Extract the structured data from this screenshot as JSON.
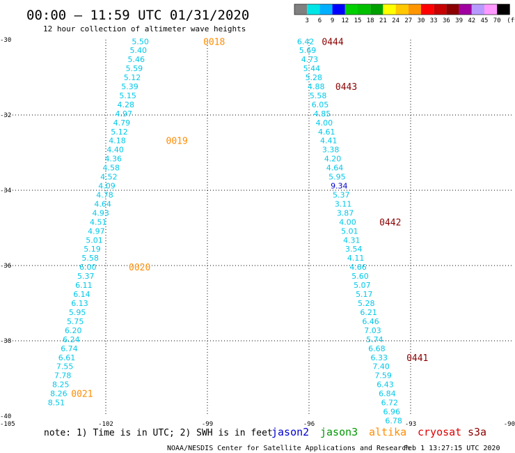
{
  "header": {
    "title": "00:00 — 11:59 UTC 01/31/2020",
    "subtitle": "12 hour collection of altimeter wave heights"
  },
  "colorbar": {
    "colors": [
      "#808080",
      "#00e5e5",
      "#00b0ff",
      "#0000ff",
      "#00d000",
      "#00c000",
      "#00a000",
      "#ffff00",
      "#ffc800",
      "#ff9600",
      "#ff0000",
      "#c80000",
      "#8b0000",
      "#a000a0",
      "#b89aff",
      "#ff99ff",
      "#000000"
    ],
    "labels": [
      "3",
      "6",
      "9",
      "12",
      "15",
      "18",
      "21",
      "24",
      "27",
      "30",
      "33",
      "36",
      "39",
      "42",
      "45",
      "70"
    ],
    "unit": "(ft)"
  },
  "chart_data": {
    "type": "scatter",
    "xlim": [
      -105,
      -90
    ],
    "ylim": [
      -40,
      -30
    ],
    "x_ticks": [
      -105,
      -102,
      -99,
      -96,
      -93,
      -90
    ],
    "y_ticks": [
      -30,
      -32,
      -34,
      -36,
      -38,
      -40
    ],
    "tick_labels": {
      "x": [
        "-105",
        "-102",
        "-99",
        "-96",
        "-93",
        "-90"
      ],
      "y": [
        "-30",
        "-32",
        "-34",
        "-36",
        "-38",
        "-40"
      ]
    },
    "grid": true,
    "series": [
      {
        "name": "jason2",
        "color": "#00c8e8",
        "points": [
          {
            "x": -100.98,
            "y": -30.05,
            "label": "5.50"
          },
          {
            "x": -101.04,
            "y": -30.28,
            "label": "5.40"
          },
          {
            "x": -101.1,
            "y": -30.52,
            "label": "5.46"
          },
          {
            "x": -101.16,
            "y": -30.76,
            "label": "5.59"
          },
          {
            "x": -101.22,
            "y": -31.0,
            "label": "5.12"
          },
          {
            "x": -101.29,
            "y": -31.24,
            "label": "5.39"
          },
          {
            "x": -101.35,
            "y": -31.48,
            "label": "5.15"
          },
          {
            "x": -101.41,
            "y": -31.72,
            "label": "4.28"
          },
          {
            "x": -101.47,
            "y": -31.96,
            "label": "4.97"
          },
          {
            "x": -101.53,
            "y": -32.2,
            "label": "4.79"
          },
          {
            "x": -101.6,
            "y": -32.44,
            "label": "5.12"
          },
          {
            "x": -101.66,
            "y": -32.68,
            "label": "4.18"
          },
          {
            "x": -101.72,
            "y": -32.92,
            "label": "4.40"
          },
          {
            "x": -101.78,
            "y": -33.16,
            "label": "4.36"
          },
          {
            "x": -101.84,
            "y": -33.4,
            "label": "4.58"
          },
          {
            "x": -101.91,
            "y": -33.64,
            "label": "4.52"
          },
          {
            "x": -101.97,
            "y": -33.88,
            "label": "4.09"
          },
          {
            "x": -102.03,
            "y": -34.12,
            "label": "4.78"
          },
          {
            "x": -102.09,
            "y": -34.36,
            "label": "4.64"
          },
          {
            "x": -102.15,
            "y": -34.6,
            "label": "4.93"
          },
          {
            "x": -102.22,
            "y": -34.84,
            "label": "4.51"
          },
          {
            "x": -102.28,
            "y": -35.08,
            "label": "4.97"
          },
          {
            "x": -102.34,
            "y": -35.32,
            "label": "5.01"
          },
          {
            "x": -102.4,
            "y": -35.56,
            "label": "5.19"
          },
          {
            "x": -102.46,
            "y": -35.8,
            "label": "5.58"
          },
          {
            "x": -102.53,
            "y": -36.04,
            "label": "6.00"
          },
          {
            "x": -102.59,
            "y": -36.28,
            "label": "5.37"
          },
          {
            "x": -102.65,
            "y": -36.52,
            "label": "6.11"
          },
          {
            "x": -102.71,
            "y": -36.76,
            "label": "6.14"
          },
          {
            "x": -102.77,
            "y": -37.0,
            "label": "6.13"
          },
          {
            "x": -102.84,
            "y": -37.24,
            "label": "5.95"
          },
          {
            "x": -102.9,
            "y": -37.48,
            "label": "5.75"
          },
          {
            "x": -102.96,
            "y": -37.72,
            "label": "6.20"
          },
          {
            "x": -103.02,
            "y": -37.96,
            "label": "6.24"
          },
          {
            "x": -103.08,
            "y": -38.2,
            "label": "6.74"
          },
          {
            "x": -103.15,
            "y": -38.44,
            "label": "6.61"
          },
          {
            "x": -103.21,
            "y": -38.68,
            "label": "7.55"
          },
          {
            "x": -103.27,
            "y": -38.92,
            "label": "7.78"
          },
          {
            "x": -103.33,
            "y": -39.16,
            "label": "8.25"
          },
          {
            "x": -103.39,
            "y": -39.4,
            "label": "8.26"
          },
          {
            "x": -103.46,
            "y": -39.64,
            "label": "8.51"
          },
          {
            "x": -96.1,
            "y": -30.05,
            "label": "6.42"
          },
          {
            "x": -96.04,
            "y": -30.28,
            "label": "5.69"
          },
          {
            "x": -95.98,
            "y": -30.52,
            "label": "4.73"
          },
          {
            "x": -95.92,
            "y": -30.76,
            "label": "5.44"
          },
          {
            "x": -95.86,
            "y": -31.0,
            "label": "5.28"
          },
          {
            "x": -95.79,
            "y": -31.24,
            "label": "4.88"
          },
          {
            "x": -95.73,
            "y": -31.48,
            "label": "5.58"
          },
          {
            "x": -95.67,
            "y": -31.72,
            "label": "6.05"
          },
          {
            "x": -95.61,
            "y": -31.96,
            "label": "4.85"
          },
          {
            "x": -95.55,
            "y": -32.2,
            "label": "4.00"
          },
          {
            "x": -95.48,
            "y": -32.44,
            "label": "4.61"
          },
          {
            "x": -95.42,
            "y": -32.68,
            "label": "4.41"
          },
          {
            "x": -95.36,
            "y": -32.92,
            "label": "3.38"
          },
          {
            "x": -95.3,
            "y": -33.16,
            "label": "4.20"
          },
          {
            "x": -95.24,
            "y": -33.4,
            "label": "4.64"
          },
          {
            "x": -95.17,
            "y": -33.64,
            "label": "5.95"
          },
          {
            "x": -95.11,
            "y": -33.88,
            "label": "9.34",
            "color": "#0000cd"
          },
          {
            "x": -95.05,
            "y": -34.12,
            "label": "5.37"
          },
          {
            "x": -94.99,
            "y": -34.36,
            "label": "3.11"
          },
          {
            "x": -94.93,
            "y": -34.6,
            "label": "3.87"
          },
          {
            "x": -94.86,
            "y": -34.84,
            "label": "4.00"
          },
          {
            "x": -94.8,
            "y": -35.08,
            "label": "5.01"
          },
          {
            "x": -94.74,
            "y": -35.32,
            "label": "4.31"
          },
          {
            "x": -94.68,
            "y": -35.56,
            "label": "3.54"
          },
          {
            "x": -94.62,
            "y": -35.8,
            "label": "4.11"
          },
          {
            "x": -94.55,
            "y": -36.04,
            "label": "4.66"
          },
          {
            "x": -94.49,
            "y": -36.28,
            "label": "5.60"
          },
          {
            "x": -94.43,
            "y": -36.52,
            "label": "5.07"
          },
          {
            "x": -94.37,
            "y": -36.76,
            "label": "5.17"
          },
          {
            "x": -94.31,
            "y": -37.0,
            "label": "5.28"
          },
          {
            "x": -94.24,
            "y": -37.24,
            "label": "6.21"
          },
          {
            "x": -94.18,
            "y": -37.48,
            "label": "6.46"
          },
          {
            "x": -94.12,
            "y": -37.72,
            "label": "7.03"
          },
          {
            "x": -94.06,
            "y": -37.96,
            "label": "5.74"
          },
          {
            "x": -94.0,
            "y": -38.2,
            "label": "6.68"
          },
          {
            "x": -93.93,
            "y": -38.44,
            "label": "6.33"
          },
          {
            "x": -93.87,
            "y": -38.68,
            "label": "7.40"
          },
          {
            "x": -93.81,
            "y": -38.92,
            "label": "7.59"
          },
          {
            "x": -93.75,
            "y": -39.16,
            "label": "6.43"
          },
          {
            "x": -93.69,
            "y": -39.4,
            "label": "6.84"
          },
          {
            "x": -93.62,
            "y": -39.64,
            "label": "6.72"
          },
          {
            "x": -93.56,
            "y": -39.88,
            "label": "6.96"
          },
          {
            "x": -93.5,
            "y": -40.12,
            "label": "6.78"
          }
        ]
      }
    ],
    "time_labels": [
      {
        "label": "0018",
        "x": -98.8,
        "y": -30.05,
        "color": "#ff8c00"
      },
      {
        "label": "0019",
        "x": -99.9,
        "y": -32.68,
        "color": "#ff8c00"
      },
      {
        "label": "0020",
        "x": -101.0,
        "y": -36.04,
        "color": "#ff8c00"
      },
      {
        "label": "0021",
        "x": -102.7,
        "y": -39.4,
        "color": "#ff8c00"
      },
      {
        "label": "0444",
        "x": -95.3,
        "y": -30.05,
        "color": "#8b0000"
      },
      {
        "label": "0443",
        "x": -94.9,
        "y": -31.24,
        "color": "#8b0000"
      },
      {
        "label": "0442",
        "x": -93.6,
        "y": -34.84,
        "color": "#8b0000"
      },
      {
        "label": "0441",
        "x": -92.8,
        "y": -38.44,
        "color": "#8b0000"
      }
    ]
  },
  "footer": {
    "note": "note: 1) Time is in UTC; 2) SWH is in feet",
    "legend": [
      {
        "name": "jason2",
        "color": "#0000cd"
      },
      {
        "name": "jason3",
        "color": "#009900"
      },
      {
        "name": "altika",
        "color": "#ff8c00"
      },
      {
        "name": "cryosat",
        "color": "#dd0000"
      },
      {
        "name": "s3a",
        "color": "#8b0000"
      }
    ],
    "credit": "NOAA/NESDIS Center for Satellite Applications and Research",
    "timestamp": "Feb  1 13:27:15 UTC 2020"
  }
}
